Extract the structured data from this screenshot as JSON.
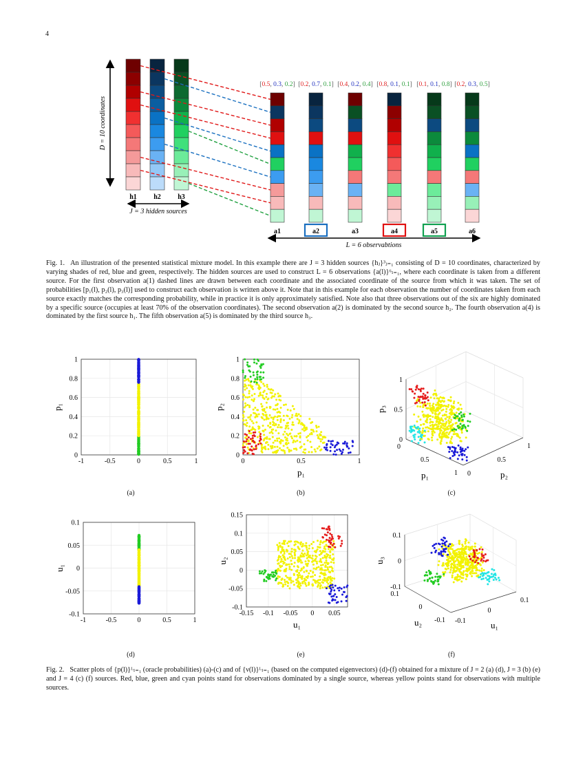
{
  "page_number": "4",
  "figure1": {
    "dimension_label": "D = 10 coordinates",
    "sources_label": "J = 3 hidden sources",
    "observations_label": "L = 6 observabtions",
    "source_names": [
      "h1",
      "h2",
      "h3"
    ],
    "source_colors": {
      "r": [
        "#6e0000",
        "#8c0000",
        "#b00000",
        "#e01010",
        "#f03030",
        "#f45a5a",
        "#f47878",
        "#f59a9a",
        "#f8baba",
        "#fbd6d6"
      ],
      "b": [
        "#08243f",
        "#0b3660",
        "#0c4a80",
        "#0b5ea0",
        "#0a72c4",
        "#1a88e0",
        "#3c9cf0",
        "#6ab2f4",
        "#94c8f7",
        "#bcdcfa"
      ],
      "g": [
        "#06391a",
        "#0a5024",
        "#0c6a30",
        "#0c8a3c",
        "#10b04c",
        "#20d060",
        "#40e07c",
        "#6ceb9a",
        "#98f0b8",
        "#c0f6d4"
      ]
    },
    "observations": [
      {
        "name": "a1",
        "probs": [
          0.5,
          0.3,
          0.2
        ],
        "sources": [
          "r",
          "b",
          "r",
          "r",
          "b",
          "g",
          "b",
          "r",
          "r",
          "g"
        ],
        "highlight": ""
      },
      {
        "name": "a2",
        "probs": [
          0.2,
          0.7,
          0.1
        ],
        "sources": [
          "b",
          "b",
          "b",
          "r",
          "b",
          "b",
          "b",
          "b",
          "r",
          "g"
        ],
        "highlight": "#1a6fc0"
      },
      {
        "name": "a3",
        "probs": [
          0.4,
          0.2,
          0.4
        ],
        "sources": [
          "r",
          "g",
          "b",
          "r",
          "g",
          "g",
          "r",
          "b",
          "r",
          "g"
        ],
        "highlight": ""
      },
      {
        "name": "a4",
        "probs": [
          0.8,
          0.1,
          0.1
        ],
        "sources": [
          "b",
          "r",
          "r",
          "r",
          "r",
          "r",
          "r",
          "g",
          "r",
          "r"
        ],
        "highlight": "#e01010"
      },
      {
        "name": "a5",
        "probs": [
          0.1,
          0.1,
          0.8
        ],
        "sources": [
          "g",
          "g",
          "b",
          "g",
          "g",
          "g",
          "r",
          "g",
          "g",
          "g"
        ],
        "highlight": "#10a050"
      },
      {
        "name": "a6",
        "probs": [
          0.2,
          0.3,
          0.5
        ],
        "sources": [
          "g",
          "g",
          "b",
          "g",
          "b",
          "g",
          "r",
          "b",
          "g",
          "r"
        ],
        "highlight": ""
      }
    ],
    "prob_colors": [
      "#e02020",
      "#2030c0",
      "#30a040"
    ],
    "caption_label": "Fig. 1.",
    "caption": "An illustration of the presented statistical mixture model. In this example there are J = 3 hidden sources {hⱼ}³ⱼ₌₁ consisting of D = 10 coordinates, characterized by varying shades of red, blue and green, respectively. The hidden sources are used to construct L = 6 observations {a(l)}⁶ₗ₌₁, where each coordinate is taken from a different source. For the first observation a(1) dashed lines are drawn between each coordinate and the associated coordinate of the source from which it was taken. The set of probabilities [p₁(l), p₂(l), p₃(l)] used to construct each observation is written above it. Note that in this example for each observation the number of coordinates taken from each source exactly matches the corresponding probability, while in practice it is only approximately satisfied. Note also that three observations out of the six are highly dominated by a specific source (occupies at least 70% of the observation coordinates). The second observation a(2) is dominated by the second source h₂. The fourth observation a(4) is dominated by the first source h₁. The fifth observation a(5) is dominated by the third source h₃."
  },
  "figure2": {
    "caption_label": "Fig. 2.",
    "caption": "Scatter plots of {p(l)}ᴸₗ₌₁ (oracle probabilities) (a)-(c) and of {ν(l)}ᴸₗ₌₁ (based on the computed eigenvectors) (d)-(f) obtained for a mixture of J = 2 (a) (d), J = 3 (b) (e) and J = 4 (c) (f) sources. Red, blue, green and cyan points stand for observations dominated by a single source, whereas yellow points stand for observations with multiple sources.",
    "sublabels": [
      "(a)",
      "(b)",
      "(c)",
      "(d)",
      "(e)",
      "(f)"
    ]
  },
  "colors": {
    "red": "#e51c1c",
    "blue": "#1a1ad8",
    "green": "#22cc22",
    "cyan": "#22e5e5",
    "yellow": "#f2f200"
  },
  "chart_data": [
    {
      "id": "a",
      "type": "scatter",
      "xlabel": "",
      "ylabel": "p₁",
      "xlim": [
        -1,
        1
      ],
      "ylim": [
        0,
        1
      ],
      "grid": true,
      "xticks": [
        "-1",
        "-0.5",
        "0",
        "0.5",
        "1"
      ],
      "yticks": [
        "0",
        "0.2",
        "0.4",
        "0.6",
        "0.8",
        "1"
      ],
      "clusters": [
        {
          "color": "green",
          "x": [
            0,
            0
          ],
          "y": [
            0,
            0.2
          ],
          "count": 40
        },
        {
          "color": "yellow",
          "x": [
            0,
            0
          ],
          "y": [
            0.2,
            0.75
          ],
          "count": 110
        },
        {
          "color": "blue",
          "x": [
            0,
            0
          ],
          "y": [
            0.75,
            1
          ],
          "count": 50
        }
      ]
    },
    {
      "id": "b",
      "type": "scatter",
      "xlabel": "p₁",
      "ylabel": "p₂",
      "xlim": [
        0,
        1
      ],
      "ylim": [
        0,
        1
      ],
      "grid": true,
      "xticks": [
        "0",
        "0.5",
        "1"
      ],
      "yticks": [
        "0",
        "0.2",
        "0.4",
        "0.6",
        "0.8",
        "1"
      ],
      "clusters": [
        {
          "color": "yellow",
          "x": [
            0,
            0.72
          ],
          "y": [
            0.02,
            0.8
          ],
          "count": 420,
          "simplex": true
        },
        {
          "color": "red",
          "x": [
            0,
            0.16
          ],
          "y": [
            0,
            0.25
          ],
          "count": 45
        },
        {
          "color": "green",
          "x": [
            0,
            0.18
          ],
          "y": [
            0.75,
            1
          ],
          "count": 40
        },
        {
          "color": "blue",
          "x": [
            0.7,
            0.95
          ],
          "y": [
            0,
            0.15
          ],
          "count": 40
        }
      ]
    },
    {
      "id": "c",
      "type": "scatter3d",
      "xlabel": "p₁",
      "ylabel": "p₂",
      "zlabel": "p₃",
      "xlim": [
        0,
        1
      ],
      "ylim": [
        0,
        1
      ],
      "zlim": [
        0,
        1
      ],
      "grid": true,
      "xticks": [
        "0",
        "0.5",
        "1"
      ],
      "yticks": [
        "0",
        "0.5",
        "1"
      ],
      "zticks": [
        "0",
        "0.5",
        "1"
      ],
      "clusters": [
        {
          "color": "yellow",
          "x": [
            0.1,
            0.7
          ],
          "y": [
            0.0,
            0.4
          ],
          "z": [
            0.1,
            0.7
          ],
          "count": 380
        },
        {
          "color": "red",
          "x": [
            0.05,
            0.3
          ],
          "y": [
            0.0,
            0.1
          ],
          "z": [
            0.65,
            0.9
          ],
          "count": 40
        },
        {
          "color": "green",
          "x": [
            0.45,
            0.65
          ],
          "y": [
            0.3,
            0.5
          ],
          "z": [
            0.2,
            0.5
          ],
          "count": 35
        },
        {
          "color": "blue",
          "x": [
            0.7,
            0.95
          ],
          "y": [
            0.0,
            0.15
          ],
          "z": [
            0.0,
            0.2
          ],
          "count": 40
        },
        {
          "color": "cyan",
          "x": [
            0.0,
            0.25
          ],
          "y": [
            0.0,
            0.1
          ],
          "z": [
            0.0,
            0.25
          ],
          "count": 35
        }
      ]
    },
    {
      "id": "d",
      "type": "scatter",
      "xlabel": "",
      "ylabel": "u₁",
      "xlim": [
        -1,
        1
      ],
      "ylim": [
        -0.1,
        0.1
      ],
      "grid": true,
      "xticks": [
        "-1",
        "-0.5",
        "0",
        "0.5",
        "1"
      ],
      "yticks": [
        "-0.1",
        "-0.05",
        "0",
        "0.05",
        "0.1"
      ],
      "clusters": [
        {
          "color": "green",
          "x": [
            0,
            0
          ],
          "y": [
            0.04,
            0.072
          ],
          "count": 40
        },
        {
          "color": "yellow",
          "x": [
            0,
            0
          ],
          "y": [
            -0.04,
            0.04
          ],
          "count": 110
        },
        {
          "color": "blue",
          "x": [
            0,
            0
          ],
          "y": [
            -0.077,
            -0.04
          ],
          "count": 50
        }
      ]
    },
    {
      "id": "e",
      "type": "scatter",
      "xlabel": "u₁",
      "ylabel": "u₂",
      "xlim": [
        -0.15,
        0.08
      ],
      "ylim": [
        -0.1,
        0.15
      ],
      "grid": true,
      "xticks": [
        "-0.15",
        "-0.1",
        "-0.05",
        "0",
        "0.05"
      ],
      "yticks": [
        "-0.1",
        "-0.05",
        "0",
        "0.05",
        "0.1",
        "0.15"
      ],
      "clusters": [
        {
          "color": "yellow",
          "x": [
            -0.08,
            0.05
          ],
          "y": [
            -0.05,
            0.08
          ],
          "count": 420
        },
        {
          "color": "red",
          "x": [
            0.02,
            0.07
          ],
          "y": [
            0.06,
            0.12
          ],
          "count": 40
        },
        {
          "color": "green",
          "x": [
            -0.12,
            -0.08
          ],
          "y": [
            -0.03,
            0.0
          ],
          "count": 35
        },
        {
          "color": "blue",
          "x": [
            0.03,
            0.08
          ],
          "y": [
            -0.09,
            -0.04
          ],
          "count": 40
        }
      ]
    },
    {
      "id": "f",
      "type": "scatter3d",
      "xlabel": "u₁",
      "ylabel": "u₂",
      "zlabel": "u₃",
      "xlim": [
        -0.15,
        0.15
      ],
      "ylim": [
        -0.15,
        0.15
      ],
      "zlim": [
        -0.15,
        0.15
      ],
      "grid": true,
      "xticks": [
        "-0.1",
        "0",
        "0.1"
      ],
      "yticks": [
        "-0.1",
        "0",
        "0.1"
      ],
      "zticks": [
        "-0.1",
        "0",
        "0.1"
      ],
      "clusters": [
        {
          "color": "yellow",
          "x": [
            -0.05,
            0.08
          ],
          "y": [
            -0.05,
            0.08
          ],
          "z": [
            -0.08,
            0.08
          ],
          "count": 400
        },
        {
          "color": "blue",
          "x": [
            -0.08,
            -0.02
          ],
          "y": [
            0.02,
            0.08
          ],
          "z": [
            0.05,
            0.12
          ],
          "count": 35
        },
        {
          "color": "red",
          "x": [
            0.03,
            0.1
          ],
          "y": [
            -0.06,
            0.0
          ],
          "z": [
            0.0,
            0.06
          ],
          "count": 35
        },
        {
          "color": "green",
          "x": [
            -0.1,
            -0.04
          ],
          "y": [
            0.05,
            0.12
          ],
          "z": [
            -0.13,
            -0.07
          ],
          "count": 35
        },
        {
          "color": "cyan",
          "x": [
            0.05,
            0.12
          ],
          "y": [
            -0.1,
            -0.04
          ],
          "z": [
            -0.1,
            -0.05
          ],
          "count": 35
        }
      ]
    }
  ]
}
